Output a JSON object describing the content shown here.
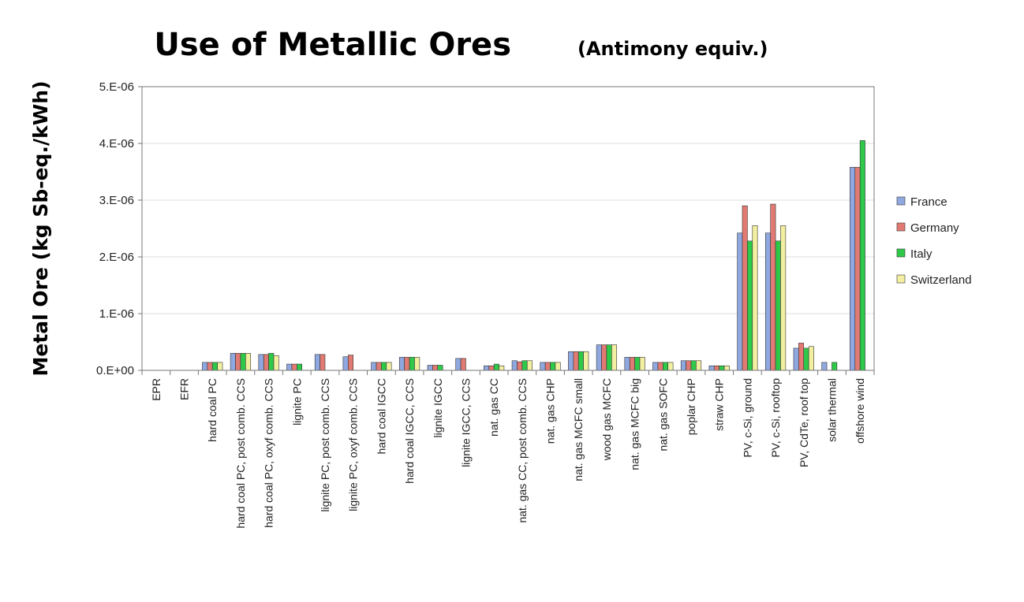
{
  "chart_data": {
    "type": "bar",
    "title": "Use of Metallic Ores",
    "subtitle": "(Antimony equiv.)",
    "ylabel": "Metal Ore (kg Sb-eq./kWh)",
    "ylim": [
      0,
      5e-06
    ],
    "yticks": [
      0,
      1e-06,
      2e-06,
      3e-06,
      4e-06,
      5e-06
    ],
    "ytick_labels": [
      "0.E+00",
      "1.E-06",
      "2.E-06",
      "3.E-06",
      "4.E-06",
      "5.E-06"
    ],
    "grid": true,
    "legend_position": "right",
    "categories": [
      "EPR",
      "EFR",
      "hard coal PC",
      "hard coal PC, post comb. CCS",
      "hard coal PC, oxyf comb. CCS",
      "lignite PC",
      "lignite PC, post comb. CCS",
      "lignite PC, oxyf comb. CCS",
      "hard coal IGCC",
      "hard coal IGCC, CCS",
      "lignite IGCC",
      "lignite IGCC, CCS",
      "nat. gas CC",
      "nat. gas CC, post comb. CCS",
      "nat. gas CHP",
      "nat. gas MCFC small",
      "wood gas MCFC",
      "nat. gas MCFC big",
      "nat. gas SOFC",
      "poplar CHP",
      "straw CHP",
      "PV, c-Si, ground",
      "PV, c-Si, rooftop",
      "PV, CdTe, roof top",
      "solar thermal",
      "offshore wind"
    ],
    "series": [
      {
        "name": "France",
        "color": "#8fa8e0",
        "values": [
          0,
          0,
          1.4e-07,
          3e-07,
          2.8e-07,
          1.1e-07,
          2.8e-07,
          2.4e-07,
          1.4e-07,
          2.3e-07,
          9e-08,
          2.1e-07,
          8e-08,
          1.7e-07,
          1.4e-07,
          3.3e-07,
          4.5e-07,
          2.3e-07,
          1.4e-07,
          1.7e-07,
          8e-08,
          2.42e-06,
          2.42e-06,
          3.9e-07,
          1.4e-07,
          3.58e-06
        ]
      },
      {
        "name": "Germany",
        "color": "#e07a72",
        "values": [
          0,
          0,
          1.4e-07,
          3e-07,
          2.8e-07,
          1.1e-07,
          2.8e-07,
          2.7e-07,
          1.4e-07,
          2.3e-07,
          9e-08,
          2.1e-07,
          8e-08,
          1.5e-07,
          1.4e-07,
          3.3e-07,
          4.5e-07,
          2.3e-07,
          1.4e-07,
          1.7e-07,
          8e-08,
          2.9e-06,
          2.93e-06,
          4.8e-07,
          0,
          3.58e-06
        ]
      },
      {
        "name": "Italy",
        "color": "#2fc94a",
        "values": [
          0,
          0,
          1.4e-07,
          3e-07,
          3e-07,
          1.1e-07,
          0,
          0,
          1.4e-07,
          2.3e-07,
          9e-08,
          0,
          1.1e-07,
          1.7e-07,
          1.4e-07,
          3.3e-07,
          4.5e-07,
          2.3e-07,
          1.4e-07,
          1.7e-07,
          8e-08,
          2.28e-06,
          2.28e-06,
          3.9e-07,
          1.4e-07,
          4.05e-06
        ]
      },
      {
        "name": "Switzerland",
        "color": "#f2efa0",
        "values": [
          0,
          0,
          1.4e-07,
          3e-07,
          2.6e-07,
          0,
          0,
          0,
          1.4e-07,
          2.3e-07,
          0,
          0,
          8e-08,
          1.7e-07,
          1.4e-07,
          3.3e-07,
          4.5e-07,
          2.3e-07,
          1.4e-07,
          1.7e-07,
          8e-08,
          2.55e-06,
          2.55e-06,
          4.2e-07,
          0,
          0
        ]
      }
    ]
  }
}
